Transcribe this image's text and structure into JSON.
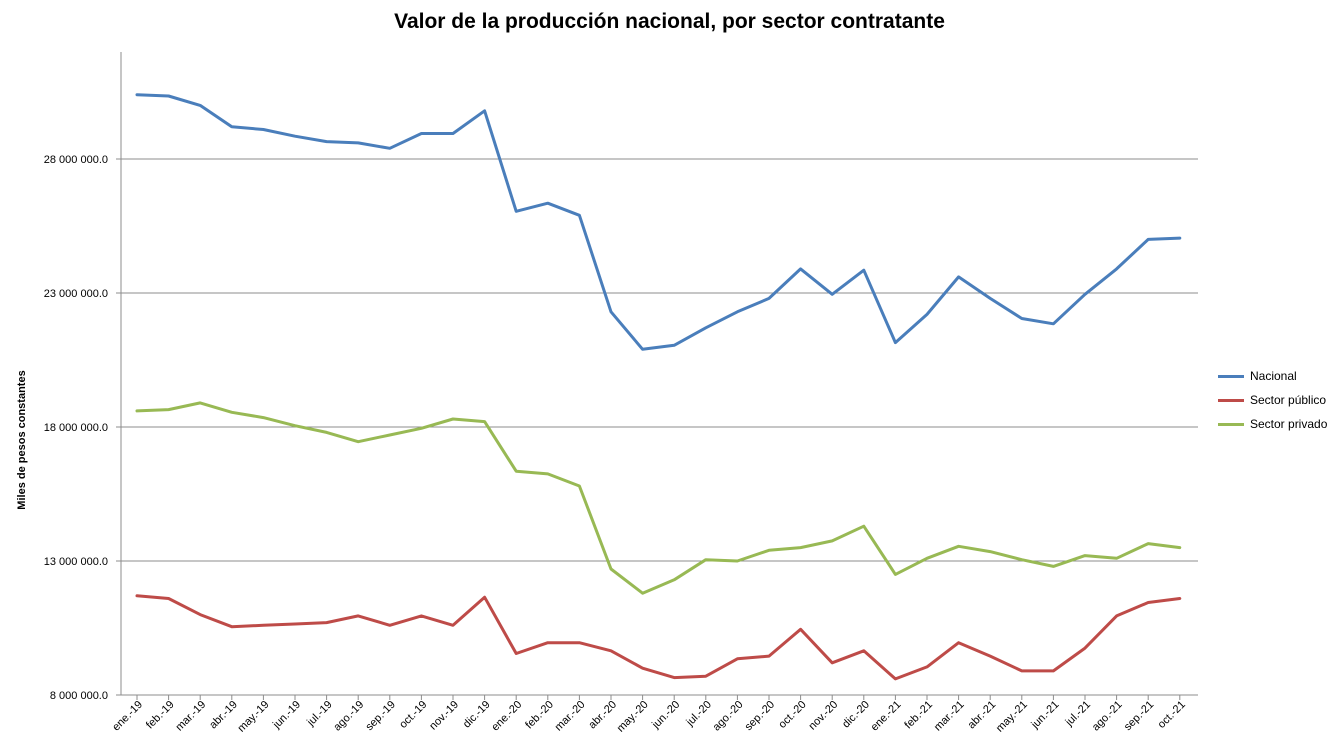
{
  "chart_data": {
    "type": "line",
    "title": "Valor de la producción nacional, por sector contratante",
    "ylabel": "Miles de pesos constantes",
    "xlabel": "",
    "ylim": [
      8000000,
      32000000
    ],
    "yticks": [
      8000000,
      13000000,
      18000000,
      23000000,
      28000000
    ],
    "ytick_labels": [
      "8 000 000.0",
      "13 000 000.0",
      "18 000 000.0",
      "23 000 000.0",
      "28 000 000.0"
    ],
    "grid": "horizontal",
    "legend_position": "right",
    "categories": [
      "ene.-19",
      "feb.-19",
      "mar.-19",
      "abr.-19",
      "may.-19",
      "jun.-19",
      "jul.-19",
      "ago.-19",
      "sep.-19",
      "oct.-19",
      "nov.-19",
      "dic.-19",
      "ene.-20",
      "feb.-20",
      "mar.-20",
      "abr.-20",
      "may.-20",
      "jun.-20",
      "jul.-20",
      "ago.-20",
      "sep.-20",
      "oct.-20",
      "nov.-20",
      "dic.-20",
      "ene.-21",
      "feb.-21",
      "mar.-21",
      "abr.-21",
      "may.-21",
      "jun.-21",
      "jul.-21",
      "ago.-21",
      "sep.-21",
      "oct.-21"
    ],
    "series": [
      {
        "name": "Nacional",
        "color": "#4a7ebb",
        "values": [
          30400000,
          30350000,
          30000000,
          29200000,
          29100000,
          28850000,
          28650000,
          28600000,
          28400000,
          28950000,
          28950000,
          29800000,
          26050000,
          26350000,
          25900000,
          22300000,
          20900000,
          21050000,
          21700000,
          22300000,
          22800000,
          23900000,
          22950000,
          23850000,
          21150000,
          22200000,
          23600000,
          22800000,
          22050000,
          21850000,
          22950000,
          23900000,
          25000000,
          25050000
        ]
      },
      {
        "name": "Sector público",
        "color": "#be4b48",
        "values": [
          11700000,
          11600000,
          11000000,
          10550000,
          10600000,
          10650000,
          10700000,
          10950000,
          10600000,
          10950000,
          10600000,
          11650000,
          9550000,
          9950000,
          9950000,
          9650000,
          9000000,
          8650000,
          8700000,
          9350000,
          9450000,
          10450000,
          9200000,
          9650000,
          8600000,
          9050000,
          9950000,
          9450000,
          8900000,
          8900000,
          9750000,
          10950000,
          11450000,
          11600000
        ]
      },
      {
        "name": "Sector privado",
        "color": "#98b954",
        "values": [
          18600000,
          18650000,
          18900000,
          18550000,
          18350000,
          18050000,
          17800000,
          17450000,
          17700000,
          17950000,
          18300000,
          18200000,
          16350000,
          16250000,
          15800000,
          12700000,
          11800000,
          12300000,
          13050000,
          13000000,
          13400000,
          13500000,
          13750000,
          14300000,
          12500000,
          13100000,
          13550000,
          13350000,
          13050000,
          12800000,
          13200000,
          13100000,
          13650000,
          13500000
        ]
      }
    ]
  }
}
